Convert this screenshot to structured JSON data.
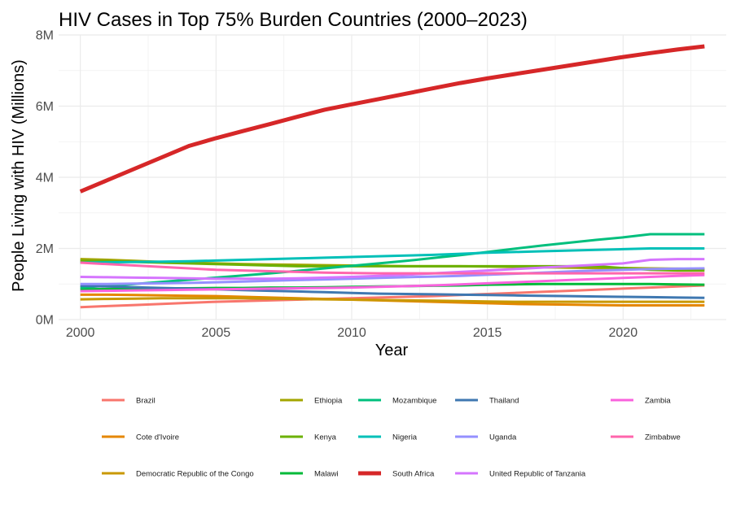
{
  "chart_data": {
    "type": "line",
    "title": "HIV Cases in Top 75% Burden Countries (2000–2023)",
    "xlabel": "Year",
    "ylabel": "People Living with HIV (Millions)",
    "xlim": [
      1999.2,
      2023.8
    ],
    "ylim": [
      0,
      8000000
    ],
    "x_ticks": [
      2000,
      2005,
      2010,
      2015,
      2020
    ],
    "x_tick_labels": [
      "2000",
      "2005",
      "2010",
      "2015",
      "2020"
    ],
    "y_ticks": [
      0,
      2000000,
      4000000,
      6000000,
      8000000
    ],
    "y_tick_labels": [
      "0M",
      "2M",
      "4M",
      "6M",
      "8M"
    ],
    "grid": true,
    "legend_position": "bottom",
    "x": [
      2000,
      2001,
      2002,
      2003,
      2004,
      2005,
      2006,
      2007,
      2008,
      2009,
      2010,
      2011,
      2012,
      2013,
      2014,
      2015,
      2016,
      2017,
      2018,
      2019,
      2020,
      2021,
      2022,
      2023
    ],
    "series": [
      {
        "name": "Brazil",
        "color": "#F8766D",
        "width": 3,
        "values": [
          350000,
          380000,
          410000,
          440000,
          470000,
          500000,
          520000,
          540000,
          560000,
          580000,
          600000,
          620000,
          640000,
          660000,
          690000,
          720000,
          750000,
          780000,
          810000,
          840000,
          870000,
          900000,
          930000,
          960000
        ]
      },
      {
        "name": "Cote d'Ivoire",
        "color": "#E58700",
        "width": 3,
        "values": [
          700000,
          700000,
          690000,
          680000,
          670000,
          660000,
          640000,
          620000,
          600000,
          580000,
          560000,
          540000,
          520000,
          500000,
          480000,
          460000,
          440000,
          430000,
          420000,
          410000,
          400000,
          400000,
          400000,
          400000
        ]
      },
      {
        "name": "Democratic Republic of the Congo",
        "color": "#C99800",
        "width": 3,
        "values": [
          570000,
          580000,
          590000,
          600000,
          600000,
          600000,
          600000,
          590000,
          580000,
          570000,
          560000,
          550000,
          540000,
          530000,
          520000,
          510000,
          500000,
          500000,
          500000,
          500000,
          500000,
          500000,
          500000,
          500000
        ]
      },
      {
        "name": "Ethiopia",
        "color": "#A3A500",
        "width": 3,
        "values": [
          1700000,
          1680000,
          1650000,
          1620000,
          1600000,
          1580000,
          1560000,
          1550000,
          1540000,
          1530000,
          1520000,
          1510000,
          1500000,
          1500000,
          1500000,
          1490000,
          1480000,
          1470000,
          1460000,
          1450000,
          1450000,
          1440000,
          1430000,
          1420000
        ]
      },
      {
        "name": "Kenya",
        "color": "#6BB100",
        "width": 3,
        "values": [
          1650000,
          1640000,
          1620000,
          1600000,
          1580000,
          1560000,
          1540000,
          1520000,
          1500000,
          1500000,
          1500000,
          1500000,
          1500000,
          1500000,
          1500000,
          1500000,
          1500000,
          1500000,
          1500000,
          1500000,
          1450000,
          1400000,
          1380000,
          1380000
        ]
      },
      {
        "name": "Malawi",
        "color": "#00BA38",
        "width": 3,
        "values": [
          850000,
          860000,
          870000,
          880000,
          880000,
          890000,
          890000,
          900000,
          900000,
          910000,
          920000,
          930000,
          940000,
          950000,
          960000,
          980000,
          990000,
          1000000,
          1000000,
          1000000,
          1000000,
          1000000,
          990000,
          980000
        ]
      },
      {
        "name": "Mozambique",
        "color": "#00BF7D",
        "width": 3,
        "values": [
          900000,
          950000,
          1000000,
          1060000,
          1120000,
          1180000,
          1240000,
          1300000,
          1370000,
          1440000,
          1510000,
          1580000,
          1650000,
          1730000,
          1810000,
          1900000,
          1990000,
          2080000,
          2160000,
          2240000,
          2310000,
          2400000,
          2400000,
          2400000
        ]
      },
      {
        "name": "Nigeria",
        "color": "#00C0B8",
        "width": 3,
        "values": [
          1600000,
          1610000,
          1620000,
          1630000,
          1640000,
          1660000,
          1680000,
          1700000,
          1720000,
          1740000,
          1760000,
          1780000,
          1800000,
          1820000,
          1850000,
          1880000,
          1900000,
          1920000,
          1940000,
          1960000,
          1980000,
          2000000,
          2000000,
          2000000
        ]
      },
      {
        "name": "South Africa",
        "color": "#D62728",
        "width": 5,
        "values": [
          3600000,
          3920000,
          4240000,
          4560000,
          4880000,
          5100000,
          5300000,
          5500000,
          5700000,
          5900000,
          6050000,
          6200000,
          6350000,
          6500000,
          6650000,
          6780000,
          6900000,
          7020000,
          7140000,
          7260000,
          7380000,
          7490000,
          7590000,
          7680000
        ]
      },
      {
        "name": "Thailand",
        "color": "#3F78B1",
        "width": 3,
        "values": [
          950000,
          930000,
          910000,
          890000,
          870000,
          850000,
          830000,
          810000,
          790000,
          770000,
          750000,
          730000,
          720000,
          710000,
          700000,
          690000,
          680000,
          670000,
          660000,
          650000,
          640000,
          630000,
          620000,
          610000
        ]
      },
      {
        "name": "Uganda",
        "color": "#9590FF",
        "width": 3,
        "values": [
          1000000,
          1000000,
          1010000,
          1020000,
          1030000,
          1050000,
          1070000,
          1090000,
          1110000,
          1130000,
          1150000,
          1170000,
          1190000,
          1210000,
          1230000,
          1260000,
          1290000,
          1320000,
          1350000,
          1380000,
          1400000,
          1420000,
          1430000,
          1440000
        ]
      },
      {
        "name": "United Republic of Tanzania",
        "color": "#D575FE",
        "width": 3,
        "values": [
          1200000,
          1190000,
          1180000,
          1170000,
          1160000,
          1150000,
          1150000,
          1150000,
          1160000,
          1180000,
          1200000,
          1230000,
          1260000,
          1300000,
          1340000,
          1380000,
          1420000,
          1460000,
          1500000,
          1540000,
          1580000,
          1680000,
          1700000,
          1700000
        ]
      },
      {
        "name": "Zambia",
        "color": "#F962DD",
        "width": 3,
        "values": [
          800000,
          810000,
          820000,
          830000,
          840000,
          850000,
          860000,
          870000,
          880000,
          890000,
          900000,
          920000,
          940000,
          960000,
          990000,
          1020000,
          1050000,
          1080000,
          1110000,
          1140000,
          1170000,
          1200000,
          1230000,
          1250000
        ]
      },
      {
        "name": "Zimbabwe",
        "color": "#FF65AC",
        "width": 3,
        "values": [
          1600000,
          1560000,
          1520000,
          1480000,
          1440000,
          1400000,
          1380000,
          1360000,
          1340000,
          1320000,
          1310000,
          1300000,
          1300000,
          1300000,
          1300000,
          1300000,
          1300000,
          1300000,
          1300000,
          1300000,
          1300000,
          1300000,
          1300000,
          1300000
        ]
      }
    ],
    "legend_columns": [
      [
        "Brazil",
        "Cote d'Ivoire",
        "Democratic Republic of the Congo"
      ],
      [
        "Ethiopia",
        "Kenya",
        "Malawi"
      ],
      [
        "Mozambique",
        "Nigeria",
        "South Africa"
      ],
      [
        "Thailand",
        "Uganda",
        "United Republic of Tanzania"
      ],
      [
        "Zambia",
        "Zimbabwe"
      ]
    ]
  }
}
